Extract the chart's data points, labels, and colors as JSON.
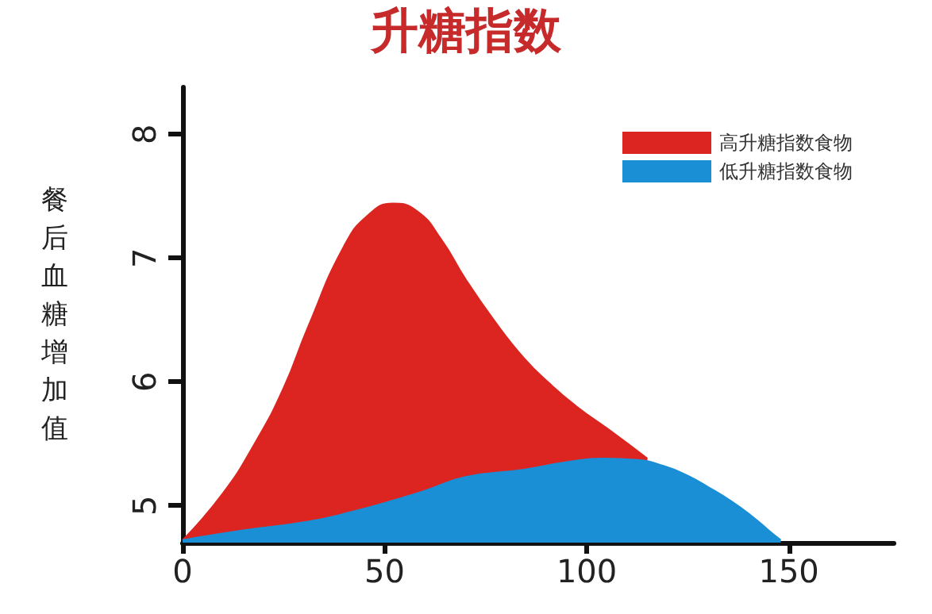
{
  "chart_data": {
    "type": "area",
    "title": "升糖指数",
    "ylabel": "餐后血糖增加值",
    "xlim": [
      0,
      176
    ],
    "xticks": [
      0,
      50,
      100,
      150
    ],
    "ylim": [
      4.7,
      8.38
    ],
    "yticks": [
      5,
      6,
      7,
      8
    ],
    "grid": false,
    "legend": "top right",
    "marker": "none",
    "series": [
      {
        "name": "高升糖指数食物",
        "color": "#dc2520",
        "x": [
          0,
          10,
          18,
          25,
          31,
          40,
          46,
          52,
          58,
          64,
          70,
          77,
          84.5,
          91,
          97.5,
          106,
          115
        ],
        "values": [
          4.72,
          5.1,
          5.51,
          5.95,
          6.44,
          7.1,
          7.35,
          7.44,
          7.38,
          7.15,
          6.83,
          6.5,
          6.19,
          5.98,
          5.8,
          5.6,
          5.38
        ]
      },
      {
        "name": "低升糖指数食物",
        "color": "#1a8fd6",
        "x": [
          0,
          15,
          31,
          42,
          52,
          60,
          70,
          84.5,
          95,
          104,
          112,
          119,
          125,
          130,
          136,
          141,
          145,
          148
        ],
        "values": [
          4.72,
          4.8,
          4.87,
          4.95,
          5.04,
          5.12,
          5.23,
          5.29,
          5.35,
          5.38,
          5.37,
          5.32,
          5.24,
          5.15,
          5.03,
          4.91,
          4.8,
          4.72
        ]
      }
    ]
  }
}
